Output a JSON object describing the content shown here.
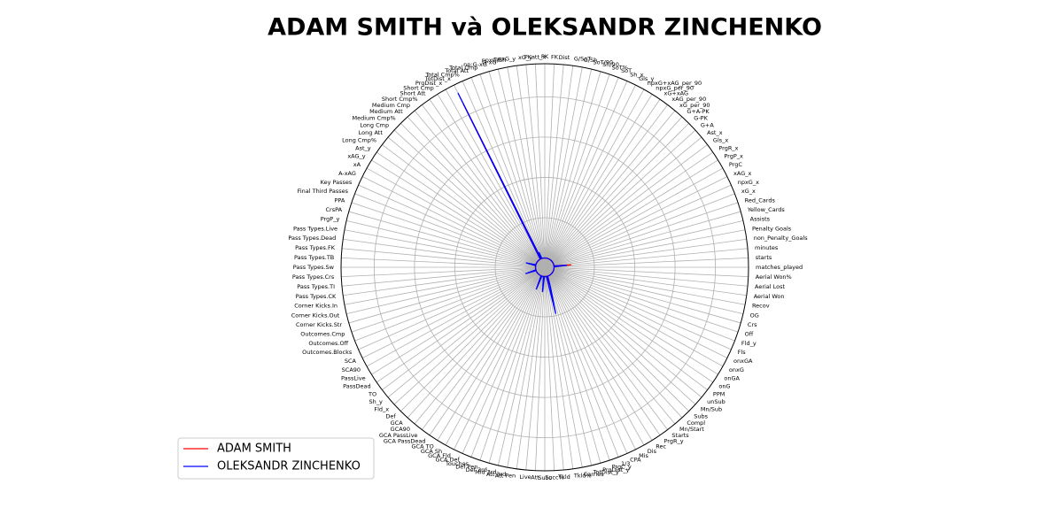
{
  "chart_data": {
    "type": "radar",
    "title": "ADAM SMITH và OLEKSANDR ZINCHENKO",
    "categories": [
      "matches_played",
      "starts",
      "minutes",
      "non_Penalty_Goals",
      "Penalty Goals",
      "Assists",
      "Yellow_Cards",
      "Red_Cards",
      "xG_x",
      "npxG_x",
      "xAG_x",
      "PrgC",
      "PrgP_x",
      "PrgR_x",
      "Gls_x",
      "Ast_x",
      "G+A",
      "G-PK",
      "G+A-PK",
      "xG_per_90",
      "xAG_per_90",
      "xG+xAG",
      "npxG_per_90",
      "npxG+xAG_per_90",
      "Gls_y",
      "Sh_x",
      "SoT",
      "SoT%",
      "Sh/90",
      "SoT/90",
      "G/Sh",
      "G/SoT",
      "Dist",
      "FK",
      "PK",
      "PKatt_x",
      "xG_y",
      "npxG_y",
      "npxG/Sh",
      "G-xG",
      "np:G-xG",
      "Total Cmp",
      "Total Att",
      "Total Cmp%",
      "TotDist_x",
      "PrgDist_x",
      "Short Cmp",
      "Short Att",
      "Short Cmp%",
      "Medium Cmp",
      "Medium Att",
      "Medium Cmp%",
      "Long Cmp",
      "Long Att",
      "Long Cmp%",
      "Ast_y",
      "xAG_y",
      "xA",
      "A-xAG",
      "Key Passes",
      "Final Third Passes",
      "PPA",
      "CrsPA",
      "PrgP_y",
      "Pass Types.Live",
      "Pass Types.Dead",
      "Pass Types.FK",
      "Pass Types.TB",
      "Pass Types.Sw",
      "Pass Types.Crs",
      "Pass Types.TI",
      "Pass Types.CK",
      "Corner Kicks.In",
      "Corner Kicks.Out",
      "Corner Kicks.Str",
      "Outcomes.Cmp",
      "Outcomes.Off",
      "Outcomes.Blocks",
      "SCA",
      "SCA90",
      "PassLive",
      "PassDead",
      "TO",
      "Sh_y",
      "Fld_x",
      "Def",
      "GCA",
      "GCA90",
      "GCA PassLive",
      "GCA PassDead",
      "GCA TO",
      "GCA Sh",
      "GCA Fld",
      "GCA Def",
      "Touches",
      "Def Pen",
      "Def 3rd",
      "Mid 3rd",
      "Att 3rd",
      "Att Pen",
      "Live",
      "Att",
      "Succ",
      "Succ%",
      "Tkld",
      "Tkld%",
      "Carries",
      "TotDist_y",
      "PrgDist_y",
      "PrgC_y",
      "1/3",
      "CPA",
      "Mis",
      "Dis",
      "Rec",
      "PrgR_y",
      "Starts",
      "Mn/Start",
      "Compl",
      "Subs",
      "Mn/Sub",
      "unSub",
      "PPM",
      "onG",
      "onGA",
      "onxG",
      "onxGA",
      "Fls",
      "Fld_y",
      "Off",
      "Crs",
      "OG",
      "Recov",
      "Aerial Won",
      "Aerial Lost",
      "Aerial Won%"
    ],
    "series": [
      {
        "name": "ADAM SMITH",
        "color": "#ff0000",
        "values": [
          0,
          0,
          430,
          0,
          0,
          0,
          0,
          0,
          0,
          0,
          0,
          0,
          0,
          0,
          0,
          0,
          0,
          0,
          0,
          0,
          0,
          0,
          0,
          0,
          0,
          0,
          0,
          0,
          0,
          0,
          0,
          0,
          0,
          0,
          0,
          0,
          0,
          0,
          0,
          0,
          0,
          0,
          0,
          0,
          4300,
          0,
          0,
          0,
          0,
          0,
          0,
          0,
          0,
          0,
          0,
          0,
          0,
          0,
          0,
          0,
          0,
          0,
          0,
          0,
          0,
          0,
          0,
          0,
          0,
          0,
          0,
          0,
          0,
          0,
          0,
          0,
          0,
          0,
          0,
          0,
          0,
          0,
          0,
          0,
          0,
          0,
          0,
          0,
          0,
          0,
          0,
          0,
          0,
          0,
          0,
          0,
          0,
          0,
          0,
          0,
          0,
          0,
          0,
          0,
          0,
          0,
          0,
          200,
          0,
          0,
          0,
          0,
          0,
          0,
          0,
          0,
          0,
          0,
          0,
          0,
          0,
          0,
          0,
          0,
          0,
          0,
          0,
          0,
          0,
          0,
          0,
          0,
          0,
          0,
          0,
          0
        ]
      },
      {
        "name": "OLEKSANDR ZINCHENKO",
        "color": "#0000ff",
        "values": [
          0,
          0,
          320,
          0,
          0,
          0,
          0,
          0,
          0,
          0,
          0,
          0,
          0,
          0,
          0,
          0,
          0,
          0,
          0,
          0,
          0,
          0,
          0,
          0,
          0,
          0,
          0,
          0,
          0,
          0,
          0,
          0,
          0,
          0,
          0,
          0,
          0,
          0,
          0,
          0,
          0,
          0,
          170,
          0,
          4600,
          0,
          0,
          0,
          0,
          0,
          0,
          0,
          0,
          0,
          0,
          0,
          0,
          0,
          0,
          0,
          0,
          0,
          0,
          250,
          0,
          0,
          0,
          0,
          0,
          0,
          0,
          0,
          0,
          0,
          0,
          275,
          0,
          0,
          0,
          0,
          0,
          0,
          0,
          0,
          0,
          0,
          0,
          0,
          0,
          0,
          0,
          0,
          0,
          0,
          360,
          0,
          0,
          0,
          0,
          0,
          385,
          0,
          0,
          0,
          0,
          0,
          0,
          956,
          300,
          0,
          0,
          0,
          0,
          0,
          0,
          0,
          0,
          0,
          0,
          0,
          0,
          0,
          0,
          0,
          0,
          0,
          0,
          0,
          0,
          0,
          0,
          0,
          0,
          0,
          0,
          0
        ]
      }
    ],
    "ylim": [
      -230,
      4820
    ],
    "yticks": [
      1000,
      2000,
      3000,
      4000
    ],
    "grid": true,
    "legend": "lower left"
  }
}
